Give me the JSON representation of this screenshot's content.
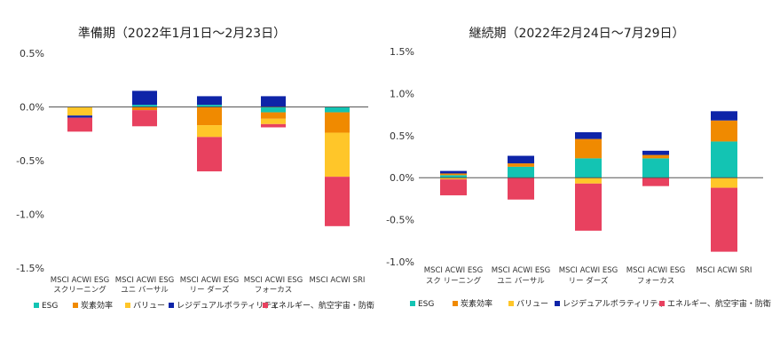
{
  "chart_data": [
    {
      "type": "bar",
      "stacked": true,
      "title": "準備期（2022年1月1日～2月23日）",
      "ylim": [
        -0.015,
        0.005
      ],
      "yticks": [
        0.005,
        0,
        -0.005,
        -0.01,
        -0.015
      ],
      "ytick_labels": [
        "0.5%",
        "0.0%",
        "-0.5%",
        "-1.0%",
        "-1.5%"
      ],
      "categories": [
        [
          "MSCI ACWI ESG",
          "スクリーニング"
        ],
        [
          "MSCI ACWI ESG",
          "ユニ バーサル"
        ],
        [
          "MSCI ACWI ESG",
          "リー ダーズ"
        ],
        [
          "MSCI ACWI ESG",
          "フォーカス"
        ],
        [
          "MSCI ACWI SRI",
          ""
        ]
      ],
      "series": [
        {
          "name": "ESG",
          "color": "#13c4b3",
          "values": [
            0.0,
            0.0002,
            0.0002,
            -0.0005,
            -0.0005
          ]
        },
        {
          "name": "炭素効率",
          "color": "#f08a00",
          "values": [
            0.0,
            -0.0003,
            -0.0017,
            -0.0006,
            -0.0019
          ]
        },
        {
          "name": "バリュー",
          "color": "#ffc629",
          "values": [
            -0.0008,
            0.0,
            -0.0011,
            -0.0005,
            -0.0041
          ]
        },
        {
          "name": "レジデュアルボラティリティ",
          "color": "#0e24a8",
          "values": [
            -0.0002,
            0.0013,
            0.0008,
            0.001,
            0.0
          ]
        },
        {
          "name": "エネルギー、航空宇宙・防衛",
          "color": "#e8415f",
          "values": [
            -0.0013,
            -0.0015,
            -0.0032,
            -0.0003,
            -0.0046
          ]
        }
      ],
      "legend": "bottom"
    },
    {
      "type": "bar",
      "stacked": true,
      "title": "継続期（2022年2月24日～7月29日）",
      "ylim": [
        -0.01,
        0.015
      ],
      "yticks": [
        0.015,
        0.01,
        0.005,
        0,
        -0.005,
        -0.01
      ],
      "ytick_labels": [
        "1.5%",
        "1.0%",
        "0.5%",
        "0.0%",
        "-0.5%",
        "-1.0%"
      ],
      "categories": [
        [
          "MSCI ACWI ESG",
          "スク リーニング"
        ],
        [
          "MSCI ACWI ESG",
          "ユニ バーサル"
        ],
        [
          "MSCI ACWI ESG",
          "リー ダーズ"
        ],
        [
          "MSCI ACWI ESG",
          "フォーカス"
        ],
        [
          "MSCI ACWI SRI",
          ""
        ]
      ],
      "series": [
        {
          "name": "ESG",
          "color": "#13c4b3",
          "values": [
            0.0003,
            0.0013,
            0.0023,
            0.0023,
            0.0043
          ]
        },
        {
          "name": "炭素効率",
          "color": "#f08a00",
          "values": [
            0.0002,
            0.0004,
            0.0023,
            0.0004,
            0.0025
          ]
        },
        {
          "name": "バリュー",
          "color": "#ffc629",
          "values": [
            -0.0002,
            0.0,
            -0.0007,
            0.0,
            -0.0012
          ]
        },
        {
          "name": "レジデュアルボラティリティ",
          "color": "#0e24a8",
          "values": [
            0.0003,
            0.0009,
            0.0008,
            0.0005,
            0.0011
          ]
        },
        {
          "name": "エネルギー、航空宇宙・防衛",
          "color": "#e8415f",
          "values": [
            -0.0019,
            -0.0026,
            -0.0056,
            -0.001,
            -0.0076
          ]
        }
      ],
      "legend": "bottom"
    }
  ]
}
